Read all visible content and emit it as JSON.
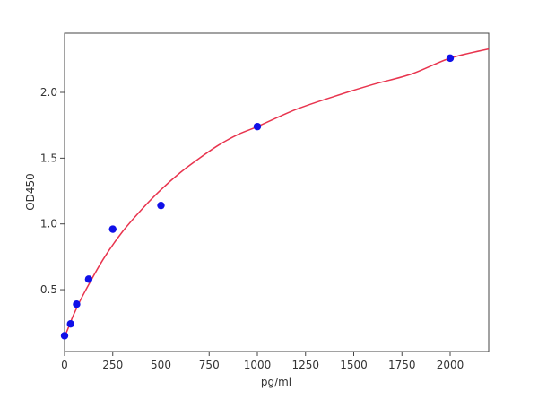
{
  "chart_data": {
    "type": "scatter",
    "title": "",
    "xlabel": "pg/ml",
    "ylabel": "OD450",
    "xlim": [
      0,
      2200
    ],
    "ylim": [
      0.03,
      2.45
    ],
    "xticks": [
      0,
      250,
      500,
      750,
      1000,
      1250,
      1500,
      1750,
      2000
    ],
    "yticks": [
      0.5,
      1.0,
      1.5,
      2.0
    ],
    "xtick_labels": [
      "0",
      "250",
      "500",
      "750",
      "1000",
      "1250",
      "1500",
      "1750",
      "2000"
    ],
    "ytick_labels": [
      "0.5",
      "1.0",
      "1.5",
      "2.0"
    ],
    "grid": false,
    "legend": "none",
    "series": [
      {
        "kind": "points",
        "color": "#1010e8",
        "x": [
          0,
          31.25,
          62.5,
          125,
          250,
          500,
          1000,
          2000
        ],
        "y": [
          0.15,
          0.24,
          0.39,
          0.58,
          0.96,
          1.14,
          1.74,
          2.26
        ]
      },
      {
        "kind": "fit-curve",
        "color": "#e8344e",
        "x": [
          0,
          25,
          50,
          100,
          200,
          300,
          400,
          500,
          600,
          700,
          800,
          900,
          1000,
          1200,
          1400,
          1600,
          1800,
          2000,
          2200
        ],
        "y": [
          0.14,
          0.23,
          0.32,
          0.47,
          0.73,
          0.94,
          1.11,
          1.26,
          1.39,
          1.5,
          1.6,
          1.68,
          1.74,
          1.87,
          1.97,
          2.06,
          2.14,
          2.26,
          2.33
        ]
      }
    ]
  }
}
